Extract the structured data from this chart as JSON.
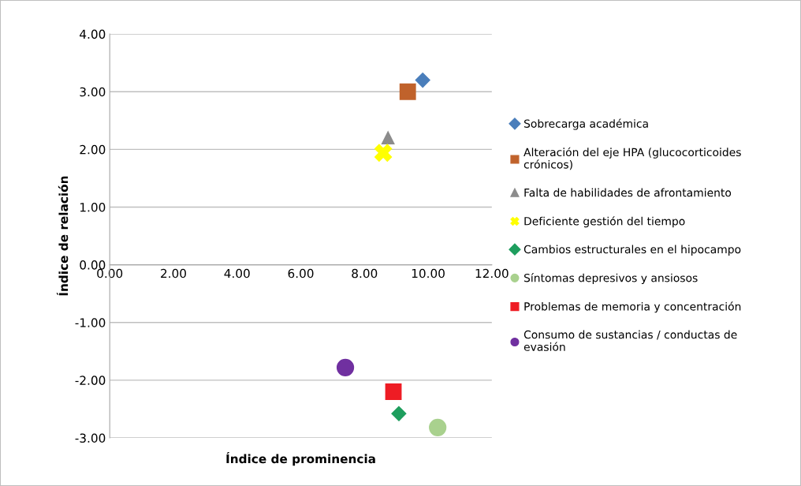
{
  "chart_data": {
    "type": "scatter",
    "xlabel": "Índice de prominencia",
    "ylabel": "Índice de relación",
    "xlim": [
      0,
      12
    ],
    "ylim": [
      -3,
      4
    ],
    "xticks": [
      {
        "value": 0,
        "label": "0.00"
      },
      {
        "value": 2,
        "label": "2.00"
      },
      {
        "value": 4,
        "label": "4.00"
      },
      {
        "value": 6,
        "label": "6.00"
      },
      {
        "value": 8,
        "label": "8.00"
      },
      {
        "value": 10,
        "label": "10.00"
      },
      {
        "value": 12,
        "label": "12.00"
      }
    ],
    "yticks": [
      {
        "value": -3,
        "label": "-3.00"
      },
      {
        "value": -2,
        "label": "-2.00"
      },
      {
        "value": -1,
        "label": "-1.00"
      },
      {
        "value": 0,
        "label": "0.00"
      },
      {
        "value": 1,
        "label": "1.00"
      },
      {
        "value": 2,
        "label": "2.00"
      },
      {
        "value": 3,
        "label": "3.00"
      },
      {
        "value": 4,
        "label": "4.00"
      }
    ],
    "grid": "y",
    "legend": "right",
    "series": [
      {
        "name": "Sobrecarga académica",
        "color": "#4a7ebb",
        "marker": "diamond",
        "x": [
          9.83
        ],
        "values": [
          3.2
        ]
      },
      {
        "name": "Alteración del eje HPA (glucocorticoides\ncrónicos)",
        "color": "#c0622b",
        "marker": "square",
        "x": [
          9.36
        ],
        "values": [
          3.0
        ]
      },
      {
        "name": "Falta de habilidades de afrontamiento",
        "color": "#8c8c8c",
        "marker": "triangle",
        "x": [
          8.74
        ],
        "values": [
          2.2
        ]
      },
      {
        "name": "Deficiente gestión del tiempo",
        "color": "#ffff00",
        "marker": "cross",
        "x": [
          8.59
        ],
        "values": [
          1.94
        ]
      },
      {
        "name": "Cambios estructurales en el hipocampo",
        "color": "#1e9e5e",
        "marker": "diamond",
        "x": [
          9.08
        ],
        "values": [
          -2.58
        ]
      },
      {
        "name": "Síntomas depresivos y ansiosos",
        "color": "#a9d18e",
        "marker": "circle",
        "x": [
          10.3
        ],
        "values": [
          -2.82
        ]
      },
      {
        "name": "Problemas de memoria y concentración",
        "color": "#ee1c24",
        "marker": "square",
        "x": [
          8.91
        ],
        "values": [
          -2.2
        ]
      },
      {
        "name": "Consumo de sustancias / conductas de\nevasión",
        "color": "#7030a0",
        "marker": "circle",
        "x": [
          7.4
        ],
        "values": [
          -1.78
        ]
      }
    ]
  }
}
